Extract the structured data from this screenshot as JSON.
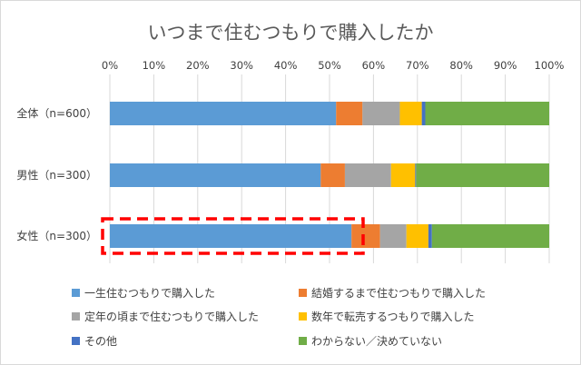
{
  "chart_data": {
    "type": "bar",
    "orientation": "horizontal",
    "stacked": "percent",
    "title": "いつまで住むつもりで購入したか",
    "xlabel": "",
    "ylabel": "",
    "xlim": [
      0,
      100
    ],
    "x_ticks": [
      "0%",
      "10%",
      "20%",
      "30%",
      "40%",
      "50%",
      "60%",
      "70%",
      "80%",
      "90%",
      "100%"
    ],
    "categories": [
      "全体（n=600）",
      "男性（n=300）",
      "女性（n=300）"
    ],
    "series": [
      {
        "name": "一生住むつもりで購入した",
        "color": "#5b9bd5",
        "values": [
          51.5,
          48.0,
          55.0
        ]
      },
      {
        "name": "結婚するまで住むつもりで購入した",
        "color": "#ed7d31",
        "values": [
          6.0,
          5.5,
          6.5
        ]
      },
      {
        "name": "定年の頃まで住むつもりで購入した",
        "color": "#a5a5a5",
        "values": [
          8.5,
          10.5,
          6.0
        ]
      },
      {
        "name": "数年で転売するつもりで購入した",
        "color": "#ffc000",
        "values": [
          5.0,
          5.5,
          5.0
        ]
      },
      {
        "name": "その他",
        "color": "#4472c4",
        "values": [
          0.8,
          0.2,
          0.8
        ]
      },
      {
        "name": "わからない／決めていない",
        "color": "#70ad47",
        "values": [
          28.2,
          30.3,
          26.7
        ]
      }
    ],
    "grid": true,
    "legend": "bottom",
    "annotation": {
      "type": "dashed-highlight-box",
      "color": "#ff0000",
      "target": "女性（n=300） / 一生住むつもりで購入した"
    }
  }
}
